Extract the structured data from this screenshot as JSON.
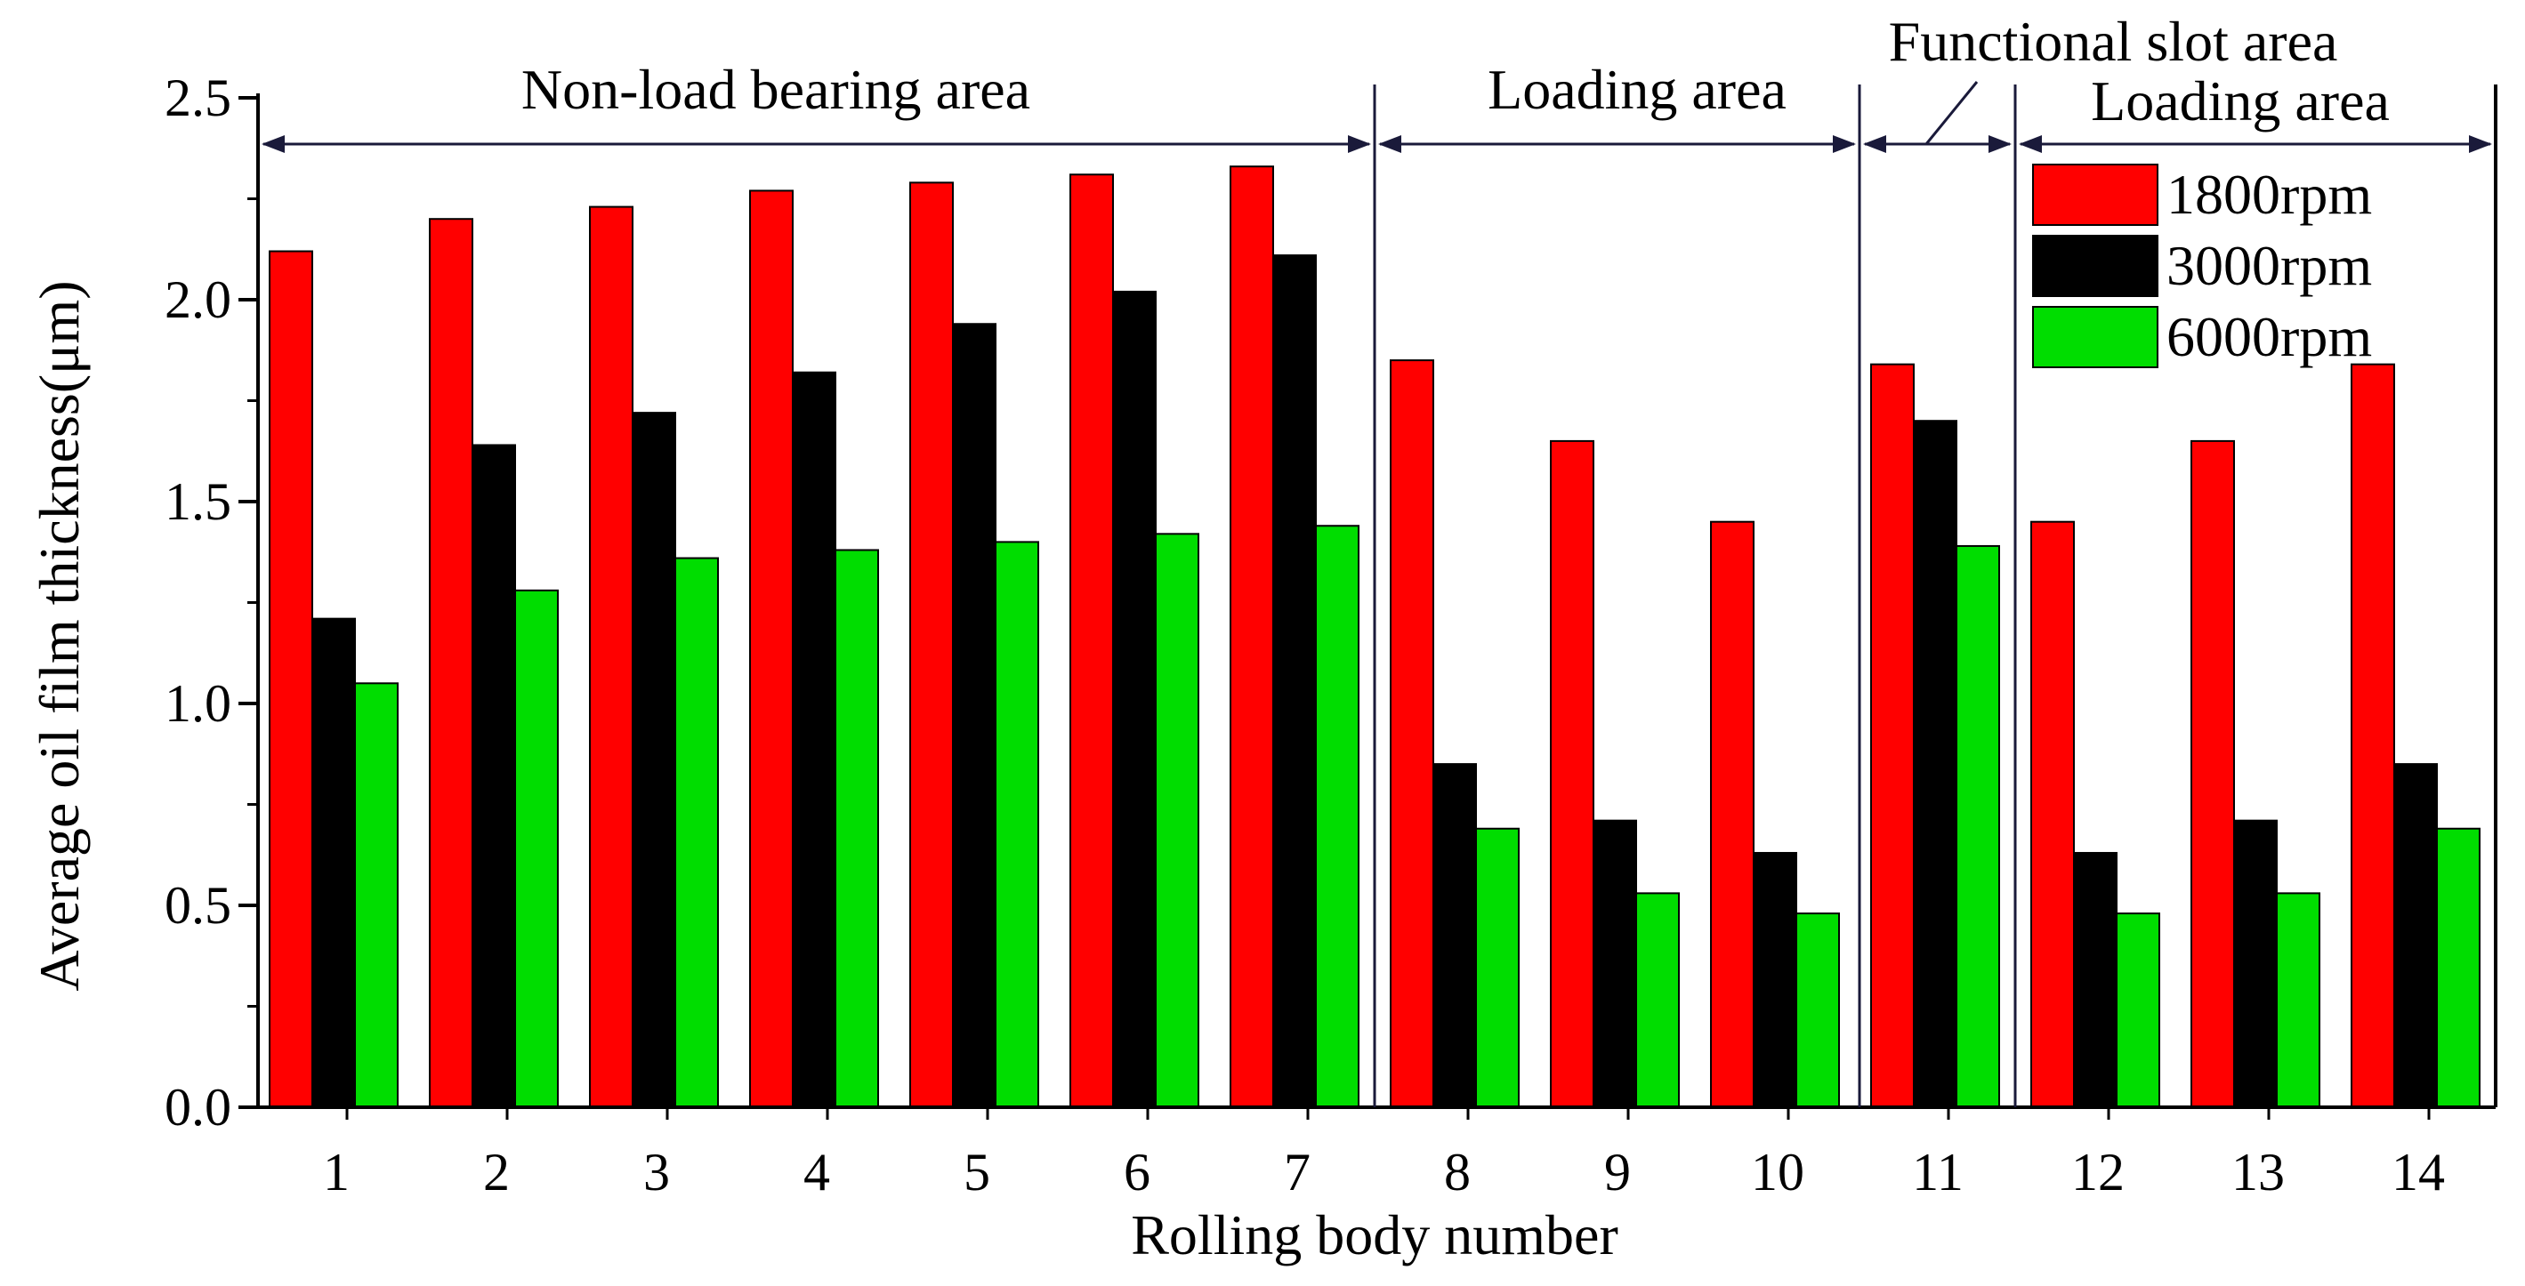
{
  "chart_data": {
    "type": "bar",
    "xlabel": "Rolling body number",
    "ylabel": "Average oil film thickness(μm)",
    "ylim": [
      0,
      2.5
    ],
    "yticks": [
      "0.0",
      "0.5",
      "1.0",
      "1.5",
      "2.0",
      "2.5"
    ],
    "categories": [
      "1",
      "2",
      "3",
      "4",
      "5",
      "6",
      "7",
      "8",
      "9",
      "10",
      "11",
      "12",
      "13",
      "14"
    ],
    "series": [
      {
        "name": "1800rpm",
        "color": "#ff0000",
        "values": [
          2.12,
          2.2,
          2.23,
          2.27,
          2.29,
          2.31,
          2.33,
          1.85,
          1.65,
          1.45,
          1.84,
          1.45,
          1.65,
          1.84
        ]
      },
      {
        "name": "3000rpm",
        "color": "#000000",
        "values": [
          1.21,
          1.64,
          1.72,
          1.82,
          1.94,
          2.02,
          2.11,
          0.85,
          0.71,
          0.63,
          1.7,
          0.63,
          0.71,
          0.85
        ]
      },
      {
        "name": "6000rpm",
        "color": "#00dd00",
        "values": [
          1.05,
          1.28,
          1.36,
          1.38,
          1.4,
          1.42,
          1.44,
          0.69,
          0.53,
          0.48,
          1.39,
          0.48,
          0.53,
          0.69
        ]
      }
    ],
    "regions": [
      {
        "label": "Non-load bearing area",
        "from": 0,
        "to": 7
      },
      {
        "label": "Loading area",
        "from": 7,
        "to": 10
      },
      {
        "label": "Functional slot area",
        "from": 10,
        "to": 11
      },
      {
        "label": "Loading area",
        "from": 11,
        "to": 14
      }
    ],
    "legend_position": "top-right",
    "grid": false
  }
}
